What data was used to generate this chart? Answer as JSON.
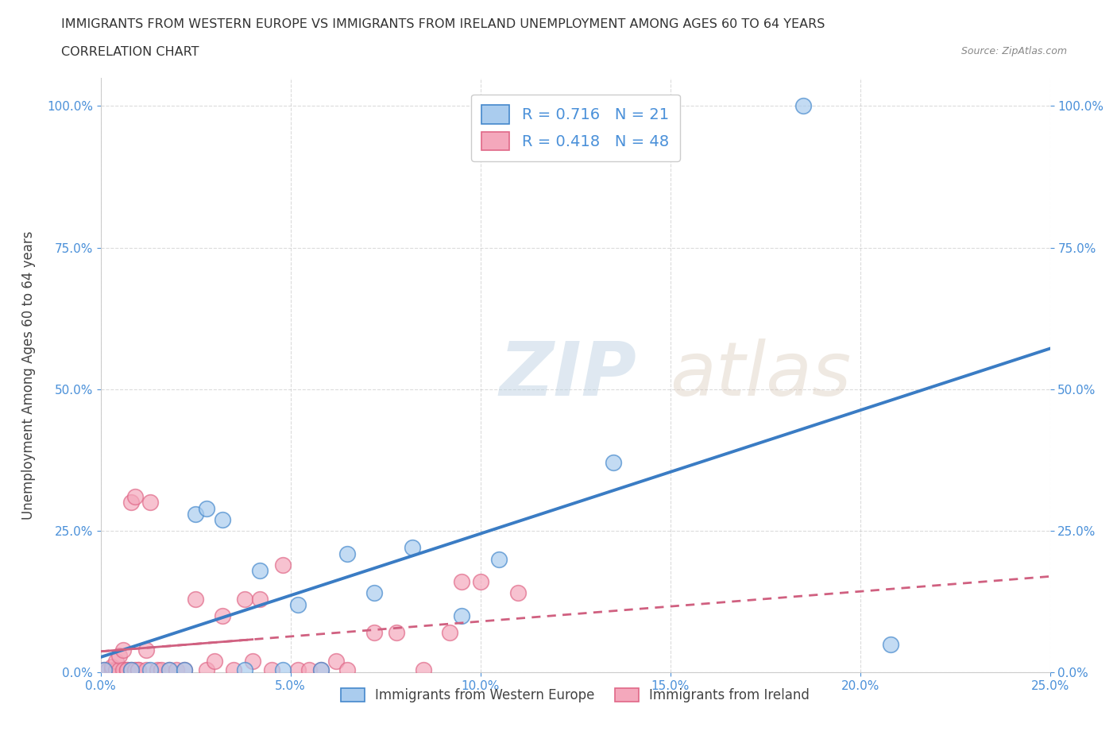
{
  "title_line1": "IMMIGRANTS FROM WESTERN EUROPE VS IMMIGRANTS FROM IRELAND UNEMPLOYMENT AMONG AGES 60 TO 64 YEARS",
  "title_line2": "CORRELATION CHART",
  "source": "Source: ZipAtlas.com",
  "ylabel": "Unemployment Among Ages 60 to 64 years",
  "watermark": "ZIPatlas",
  "legend_label1": "Immigrants from Western Europe",
  "legend_label2": "Immigrants from Ireland",
  "R1": 0.716,
  "N1": 21,
  "R2": 0.418,
  "N2": 48,
  "color_blue": "#aaccee",
  "color_pink": "#f4a8bc",
  "edge_blue": "#4488cc",
  "edge_pink": "#e06888",
  "line_blue": "#3a7cc4",
  "line_pink": "#d06080",
  "tick_color": "#4a90d9",
  "xlim": [
    0.0,
    0.25
  ],
  "ylim": [
    0.0,
    1.05
  ],
  "xticks": [
    0.0,
    0.05,
    0.1,
    0.15,
    0.2,
    0.25
  ],
  "yticks": [
    0.0,
    0.25,
    0.5,
    0.75,
    1.0
  ],
  "blue_x": [
    0.001,
    0.008,
    0.013,
    0.018,
    0.022,
    0.025,
    0.028,
    0.032,
    0.038,
    0.042,
    0.048,
    0.052,
    0.058,
    0.065,
    0.072,
    0.082,
    0.095,
    0.105,
    0.135,
    0.185,
    0.208
  ],
  "blue_y": [
    0.005,
    0.005,
    0.005,
    0.005,
    0.005,
    0.28,
    0.29,
    0.27,
    0.005,
    0.18,
    0.005,
    0.12,
    0.005,
    0.21,
    0.14,
    0.22,
    0.1,
    0.2,
    0.37,
    1.0,
    0.05
  ],
  "pink_x": [
    0.001,
    0.002,
    0.003,
    0.003,
    0.004,
    0.004,
    0.005,
    0.005,
    0.006,
    0.006,
    0.007,
    0.007,
    0.008,
    0.008,
    0.009,
    0.009,
    0.01,
    0.01,
    0.012,
    0.012,
    0.013,
    0.015,
    0.016,
    0.018,
    0.02,
    0.022,
    0.025,
    0.028,
    0.03,
    0.032,
    0.035,
    0.038,
    0.04,
    0.042,
    0.045,
    0.048,
    0.052,
    0.055,
    0.058,
    0.062,
    0.065,
    0.072,
    0.078,
    0.085,
    0.092,
    0.095,
    0.1,
    0.11
  ],
  "pink_y": [
    0.005,
    0.005,
    0.005,
    0.01,
    0.005,
    0.02,
    0.005,
    0.03,
    0.005,
    0.04,
    0.005,
    0.005,
    0.005,
    0.3,
    0.005,
    0.31,
    0.005,
    0.005,
    0.005,
    0.04,
    0.3,
    0.005,
    0.005,
    0.005,
    0.005,
    0.005,
    0.13,
    0.005,
    0.02,
    0.1,
    0.005,
    0.13,
    0.02,
    0.13,
    0.005,
    0.19,
    0.005,
    0.005,
    0.005,
    0.02,
    0.005,
    0.07,
    0.07,
    0.005,
    0.07,
    0.16,
    0.16,
    0.14
  ]
}
